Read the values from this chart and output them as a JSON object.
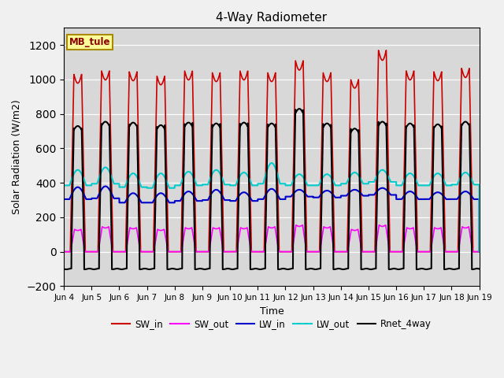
{
  "title": "4-Way Radiometer",
  "xlabel": "Time",
  "ylabel": "Solar Radiation (W/m2)",
  "ylim": [
    -200,
    1300
  ],
  "background_color": "#f0f0f0",
  "plot_bg_color": "#d8d8d8",
  "station_label": "MB_tule",
  "x_tick_labels": [
    "Jun 4",
    "Jun 5",
    "Jun 6",
    "Jun 7",
    "Jun 8",
    "Jun 9",
    "Jun 10",
    "Jun 11",
    "Jun 12",
    "Jun 13",
    "Jun 14",
    "Jun 15",
    "Jun 16",
    "Jun 17",
    "Jun 18",
    "Jun 19"
  ],
  "series": {
    "SW_in": {
      "color": "#cc0000",
      "lw": 1.2
    },
    "SW_out": {
      "color": "#ff00ff",
      "lw": 1.2
    },
    "LW_in": {
      "color": "#0000cc",
      "lw": 1.5
    },
    "LW_out": {
      "color": "#00cccc",
      "lw": 1.5
    },
    "Rnet_4way": {
      "color": "#000000",
      "lw": 1.5
    }
  },
  "n_days": 15,
  "pts_per_day": 480,
  "SW_in_peak": [
    1030,
    1050,
    1045,
    1020,
    1050,
    1040,
    1050,
    1040,
    1110,
    1040,
    1000,
    1170,
    1050,
    1045,
    1065
  ],
  "SW_out_peak": [
    130,
    145,
    140,
    130,
    140,
    140,
    140,
    145,
    155,
    145,
    130,
    155,
    140,
    140,
    145
  ],
  "LW_in_base": [
    305,
    310,
    285,
    285,
    295,
    300,
    295,
    305,
    320,
    315,
    325,
    330,
    305,
    305,
    305
  ],
  "LW_in_peak": [
    375,
    380,
    340,
    340,
    350,
    360,
    345,
    365,
    360,
    355,
    360,
    370,
    350,
    345,
    350
  ],
  "LW_out_base": [
    385,
    395,
    375,
    370,
    385,
    390,
    385,
    395,
    385,
    385,
    395,
    405,
    385,
    385,
    390
  ],
  "LW_out_peak": [
    475,
    490,
    455,
    455,
    465,
    475,
    460,
    515,
    450,
    450,
    460,
    475,
    455,
    455,
    460
  ],
  "Rnet_peak": [
    730,
    755,
    750,
    735,
    750,
    745,
    750,
    745,
    830,
    745,
    715,
    755,
    745,
    740,
    755
  ],
  "Rnet_night": -100
}
